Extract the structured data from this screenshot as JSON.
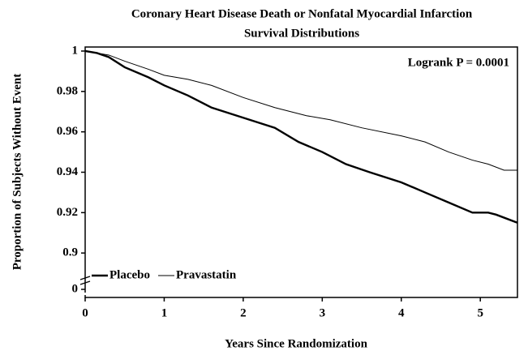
{
  "chart_data": {
    "type": "line",
    "title": "Coronary Heart Disease Death or Nonfatal Myocardial Infarction",
    "subtitle": "Survival Distributions",
    "x_label": "Years Since Randomization",
    "y_label": "Proportion of Subjects Without Event",
    "annotation": "Logrank P = 0.0001",
    "xlim": [
      0,
      5.47
    ],
    "xticks": [
      0,
      1,
      2,
      3,
      4,
      5
    ],
    "ylim": [
      0.878,
      1.002
    ],
    "yticks": [
      0,
      0.9,
      0.92,
      0.94,
      0.96,
      0.98,
      1
    ],
    "axis_break": true,
    "legend": "lower left",
    "series": [
      {
        "name": "Placebo",
        "color": "#000000",
        "x": [
          0,
          0.15,
          0.3,
          0.5,
          0.8,
          1,
          1.3,
          1.6,
          2,
          2.4,
          2.7,
          3,
          3.3,
          3.6,
          4,
          4.3,
          4.6,
          4.9,
          5.1,
          5.2,
          5.47
        ],
        "values": [
          1,
          0.999,
          0.997,
          0.992,
          0.987,
          0.983,
          0.978,
          0.972,
          0.967,
          0.962,
          0.955,
          0.95,
          0.944,
          0.94,
          0.935,
          0.93,
          0.925,
          0.92,
          0.92,
          0.919,
          0.915
        ]
      },
      {
        "name": "Pravastatin",
        "color": "#000000",
        "x": [
          0,
          0.15,
          0.3,
          0.5,
          0.8,
          1,
          1.3,
          1.6,
          2,
          2.4,
          2.8,
          3.1,
          3.5,
          4,
          4.3,
          4.6,
          4.9,
          5.1,
          5.3,
          5.47
        ],
        "values": [
          1,
          0.999,
          0.998,
          0.995,
          0.991,
          0.988,
          0.986,
          0.983,
          0.977,
          0.972,
          0.968,
          0.966,
          0.962,
          0.958,
          0.955,
          0.95,
          0.946,
          0.944,
          0.941,
          0.941
        ]
      }
    ]
  }
}
